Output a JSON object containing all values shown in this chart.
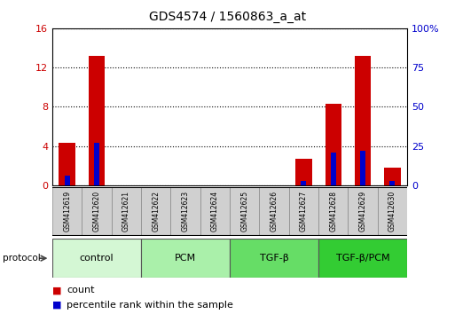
{
  "title": "GDS4574 / 1560863_a_at",
  "samples": [
    "GSM412619",
    "GSM412620",
    "GSM412621",
    "GSM412622",
    "GSM412623",
    "GSM412624",
    "GSM412625",
    "GSM412626",
    "GSM412627",
    "GSM412628",
    "GSM412629",
    "GSM412630"
  ],
  "count_values": [
    4.3,
    13.2,
    0,
    0,
    0,
    0,
    0,
    0,
    2.7,
    8.3,
    13.2,
    1.8
  ],
  "percentile_values": [
    6.0,
    27.0,
    0,
    0,
    0,
    0,
    0,
    0,
    3.0,
    21.0,
    22.0,
    3.0
  ],
  "count_color": "#cc0000",
  "percentile_color": "#0000cc",
  "ylim_left": [
    0,
    16
  ],
  "ylim_right": [
    0,
    100
  ],
  "yticks_left": [
    0,
    4,
    8,
    12,
    16
  ],
  "ytick_labels_left": [
    "0",
    "4",
    "8",
    "12",
    "16"
  ],
  "yticks_right": [
    0,
    25,
    50,
    75,
    100
  ],
  "ytick_labels_right": [
    "0",
    "25",
    "50",
    "75",
    "100%"
  ],
  "background_color": "#ffffff",
  "groups": [
    {
      "label": "control",
      "start": 0,
      "end": 2,
      "color": "#d4f7d4"
    },
    {
      "label": "PCM",
      "start": 3,
      "end": 5,
      "color": "#aaf0aa"
    },
    {
      "label": "TGF-β",
      "start": 6,
      "end": 8,
      "color": "#66dd66"
    },
    {
      "label": "TGF-β/PCM",
      "start": 9,
      "end": 11,
      "color": "#33cc33"
    }
  ],
  "protocol_label": "protocol",
  "bar_width": 0.55,
  "blue_bar_width": 0.18,
  "tick_fontsize": 8,
  "title_fontsize": 10,
  "group_fontsize": 8,
  "legend_fontsize": 8
}
